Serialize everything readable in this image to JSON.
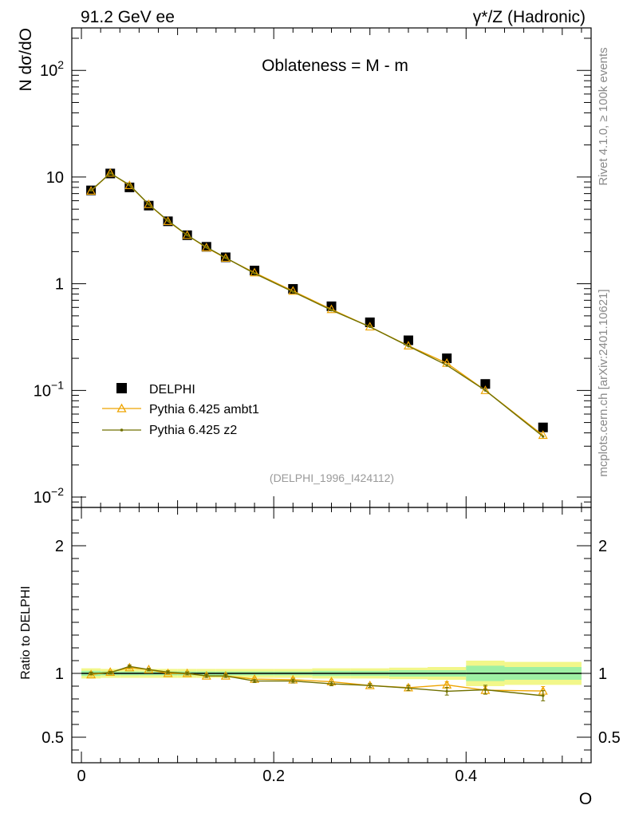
{
  "header": {
    "left": "91.2 GeV ee",
    "right": "γ*/Z (Hadronic)"
  },
  "side_labels": {
    "rivet": "Rivet 4.1.0, ≥ 100k events",
    "mcplots": "mcplots.cern.ch [arXiv:2401.10621]"
  },
  "chart_data": {
    "type": "line",
    "title": "Oblateness = M - m",
    "analysis_id": "(DELPHI_1996_I424112)",
    "xlabel": "O",
    "ylabel": "N  dσ/dO",
    "ratio_ylabel": "Ratio to DELPHI",
    "xlim": [
      -0.01,
      0.53
    ],
    "ylim": [
      0.008,
      250
    ],
    "yscale": "log",
    "ratio_ylim": [
      0.3,
      2.3
    ],
    "xticks": [
      {
        "v": 0,
        "label": "0"
      },
      {
        "v": 0.2,
        "label": "0.2"
      },
      {
        "v": 0.4,
        "label": "0.4"
      }
    ],
    "yticks": [
      {
        "v": 0.01,
        "base": "10",
        "exp": "−2"
      },
      {
        "v": 0.1,
        "base": "10",
        "exp": "−1"
      },
      {
        "v": 1,
        "base": "1",
        "exp": ""
      },
      {
        "v": 10,
        "base": "10",
        "exp": ""
      },
      {
        "v": 100,
        "base": "10",
        "exp": "2"
      }
    ],
    "ratio_yticks": [
      {
        "v": 0.5,
        "label": "0.5"
      },
      {
        "v": 1,
        "label": "1"
      },
      {
        "v": 2,
        "label": "2"
      }
    ],
    "x": [
      0.01,
      0.03,
      0.05,
      0.07,
      0.09,
      0.11,
      0.13,
      0.15,
      0.18,
      0.22,
      0.26,
      0.3,
      0.34,
      0.38,
      0.42,
      0.48
    ],
    "bins": [
      [
        0.0,
        0.02
      ],
      [
        0.02,
        0.04
      ],
      [
        0.04,
        0.06
      ],
      [
        0.06,
        0.08
      ],
      [
        0.08,
        0.1
      ],
      [
        0.1,
        0.12
      ],
      [
        0.12,
        0.14
      ],
      [
        0.14,
        0.16
      ],
      [
        0.16,
        0.2
      ],
      [
        0.2,
        0.24
      ],
      [
        0.24,
        0.28
      ],
      [
        0.28,
        0.32
      ],
      [
        0.32,
        0.36
      ],
      [
        0.36,
        0.4
      ],
      [
        0.4,
        0.44
      ],
      [
        0.44,
        0.52
      ]
    ],
    "band_inner": [
      0.02,
      0.015,
      0.015,
      0.015,
      0.015,
      0.015,
      0.015,
      0.015,
      0.015,
      0.015,
      0.02,
      0.02,
      0.025,
      0.025,
      0.06,
      0.05
    ],
    "band_outer": [
      0.04,
      0.035,
      0.035,
      0.035,
      0.035,
      0.035,
      0.035,
      0.035,
      0.035,
      0.035,
      0.04,
      0.04,
      0.045,
      0.05,
      0.1,
      0.09
    ],
    "series": [
      {
        "name": "DELPHI",
        "kind": "data",
        "color": "#000000",
        "values": [
          7.5,
          10.8,
          8.0,
          5.4,
          3.85,
          2.85,
          2.22,
          1.77,
          1.33,
          0.895,
          0.615,
          0.435,
          0.295,
          0.2,
          0.115,
          0.045
        ]
      },
      {
        "name": "Pythia 6.425 ambt1",
        "kind": "mc-triangle",
        "color": "#eea400",
        "values": [
          7.4,
          10.9,
          8.35,
          5.55,
          3.85,
          2.85,
          2.18,
          1.74,
          1.27,
          0.855,
          0.575,
          0.395,
          0.262,
          0.18,
          0.1,
          0.038
        ],
        "ratio": [
          0.99,
          1.01,
          1.045,
          1.03,
          1.0,
          1.0,
          0.98,
          0.98,
          0.955,
          0.95,
          0.935,
          0.905,
          0.888,
          0.91,
          0.868,
          0.862
        ],
        "ratio_err": [
          0.01,
          0.01,
          0.01,
          0.01,
          0.01,
          0.012,
          0.012,
          0.012,
          0.012,
          0.015,
          0.015,
          0.015,
          0.02,
          0.025,
          0.03,
          0.035
        ]
      },
      {
        "name": "Pythia 6.425 z2",
        "kind": "mc-dot",
        "color": "#707000",
        "values": [
          7.5,
          10.85,
          8.45,
          5.55,
          3.9,
          2.85,
          2.2,
          1.75,
          1.25,
          0.84,
          0.565,
          0.395,
          0.26,
          0.172,
          0.1,
          0.037
        ],
        "ratio": [
          1.0,
          1.005,
          1.055,
          1.03,
          1.01,
          1.0,
          0.98,
          0.98,
          0.94,
          0.94,
          0.918,
          0.905,
          0.885,
          0.86,
          0.872,
          0.825
        ],
        "ratio_err": [
          0.01,
          0.01,
          0.01,
          0.01,
          0.01,
          0.012,
          0.012,
          0.012,
          0.012,
          0.015,
          0.015,
          0.015,
          0.02,
          0.03,
          0.035,
          0.04
        ]
      }
    ]
  }
}
